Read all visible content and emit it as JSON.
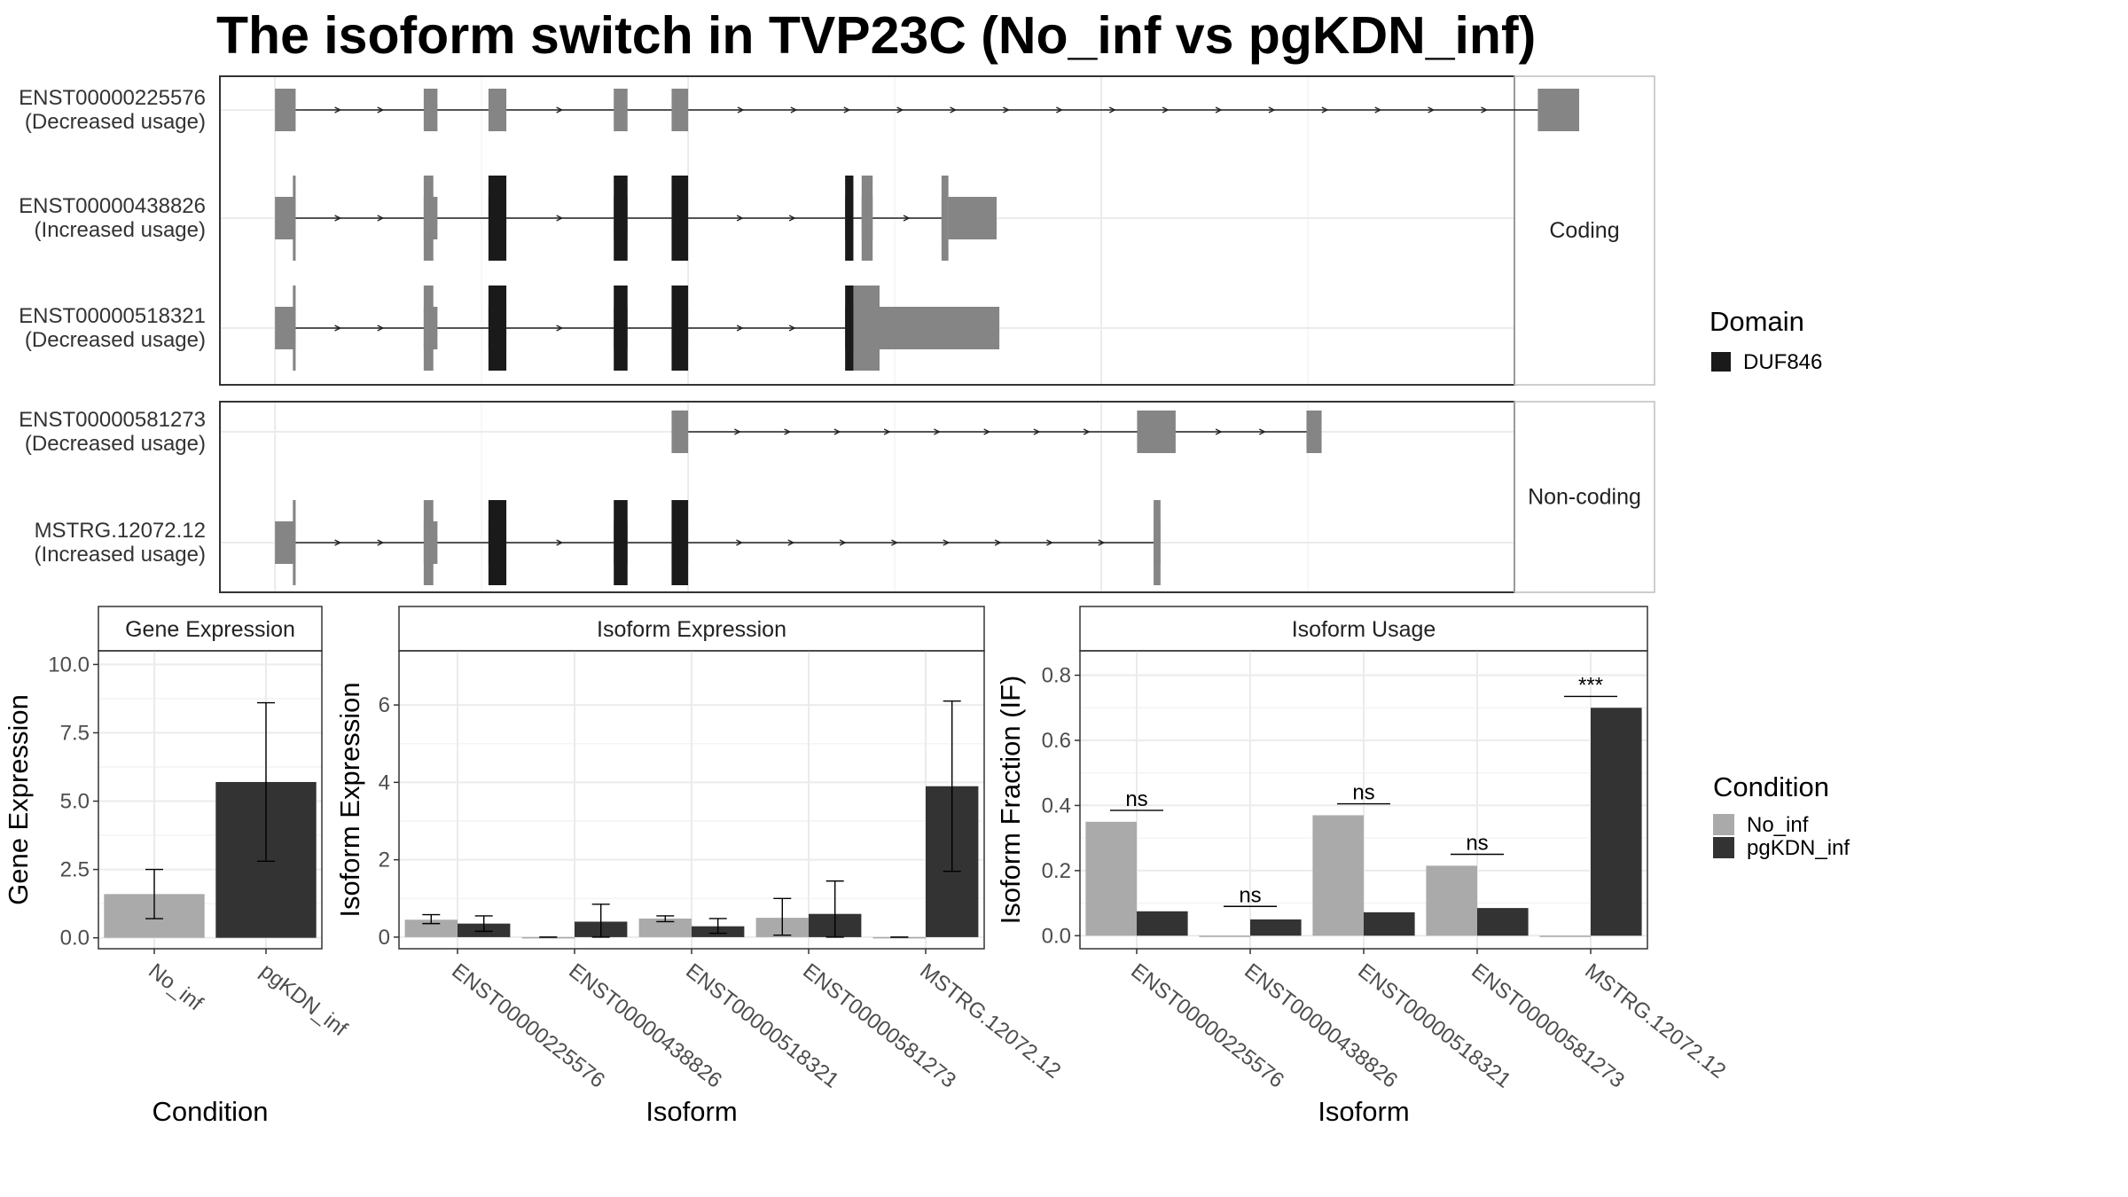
{
  "title": "The isoform switch in TVP23C (No_inf vs pgKDN_inf)",
  "colors": {
    "utr": "#858585",
    "domain": "#1a1a1a",
    "no_inf": "#aaaaaa",
    "pgkdn_inf": "#333333",
    "grid": "#ebebeb"
  },
  "structure": {
    "facets": [
      {
        "label": "Coding",
        "isoforms": [
          {
            "id": "ENST00000225576",
            "usage": "(Decreased usage)",
            "exons": [
              [
                0.0,
                1.5
              ],
              [
                10.8,
                11.8
              ],
              [
                15.5,
                16.8
              ],
              [
                24.6,
                25.6
              ],
              [
                28.8,
                30.0
              ],
              [
                91.7,
                94.7
              ]
            ],
            "domain_exons": [],
            "cds": []
          },
          {
            "id": "ENST00000438826",
            "usage": "(Increased usage)",
            "exons": [
              [
                0.0,
                1.5
              ],
              [
                10.8,
                11.8
              ],
              [
                15.5,
                16.8
              ],
              [
                24.6,
                25.6
              ],
              [
                28.8,
                30.0
              ],
              [
                41.4,
                42.0
              ],
              [
                42.6,
                43.4
              ],
              [
                48.4,
                48.9
              ],
              [
                48.9,
                52.4
              ]
            ],
            "domain_exons": [
              [
                15.5,
                16.8
              ],
              [
                24.6,
                25.6
              ],
              [
                28.8,
                30.0
              ],
              [
                41.4,
                42.0
              ]
            ],
            "cds": [
              [
                1.3,
                1.5
              ],
              [
                10.8,
                11.5
              ],
              [
                42.6,
                43.4
              ],
              [
                48.4,
                48.9
              ]
            ]
          },
          {
            "id": "ENST00000518321",
            "usage": "(Decreased usage)",
            "exons": [
              [
                0.0,
                1.5
              ],
              [
                10.8,
                11.8
              ],
              [
                15.5,
                16.8
              ],
              [
                24.6,
                25.6
              ],
              [
                28.8,
                30.0
              ],
              [
                41.4,
                42.0
              ],
              [
                42.6,
                52.6
              ]
            ],
            "domain_exons": [
              [
                15.5,
                16.8
              ],
              [
                24.6,
                25.6
              ],
              [
                28.8,
                30.0
              ],
              [
                41.4,
                42.0
              ]
            ],
            "cds": [
              [
                1.3,
                1.5
              ],
              [
                10.8,
                11.5
              ],
              [
                42.0,
                43.9
              ]
            ]
          }
        ]
      },
      {
        "label": "Non-coding",
        "isoforms": [
          {
            "id": "ENST00000581273",
            "usage": "(Decreased usage)",
            "exons": [
              [
                28.8,
                30.0
              ],
              [
                62.6,
                65.4
              ],
              [
                74.9,
                76.0
              ]
            ],
            "domain_exons": [],
            "cds": []
          },
          {
            "id": "MSTRG.12072.12",
            "usage": "(Increased usage)",
            "exons": [
              [
                0.0,
                1.5
              ],
              [
                10.8,
                11.8
              ],
              [
                15.5,
                16.8
              ],
              [
                24.6,
                25.6
              ],
              [
                28.8,
                30.0
              ],
              [
                63.8,
                64.3
              ]
            ],
            "domain_exons": [
              [
                15.5,
                16.8
              ],
              [
                24.6,
                25.6
              ],
              [
                28.8,
                30.0
              ]
            ],
            "cds": [
              [
                1.3,
                1.5
              ],
              [
                10.8,
                11.5
              ],
              [
                63.8,
                64.3
              ]
            ]
          }
        ]
      }
    ],
    "x_range": [
      -4,
      90
    ]
  },
  "legend_domain": {
    "title": "Domain",
    "items": [
      "DUF846"
    ]
  },
  "legend_condition": {
    "title": "Condition",
    "items": [
      "No_inf",
      "pgKDN_inf"
    ]
  },
  "chart_data": [
    {
      "type": "bar",
      "title": "Gene Expression",
      "xlabel": "Condition",
      "ylabel": "Gene Expression",
      "categories": [
        "No_inf",
        "pgKDN_inf"
      ],
      "values": [
        1.6,
        5.7
      ],
      "error_low": [
        0.7,
        2.8
      ],
      "error_high": [
        2.5,
        8.6
      ],
      "ylim": [
        -0.4,
        10.5
      ],
      "yticks": [
        "0.0",
        "2.5",
        "5.0",
        "7.5",
        "10.0"
      ],
      "grid": true
    },
    {
      "type": "bar",
      "title": "Isoform Expression",
      "xlabel": "Isoform",
      "ylabel": "Isoform Expression",
      "categories": [
        "ENST00000225576",
        "ENST00000438826",
        "ENST00000518321",
        "ENST00000581273",
        "MSTRG.12072.12"
      ],
      "series": [
        {
          "name": "No_inf",
          "values": [
            0.45,
            0.0,
            0.48,
            0.5,
            0.0
          ],
          "error_low": [
            0.35,
            0.0,
            0.4,
            0.05,
            0.0
          ],
          "error_high": [
            0.58,
            0.0,
            0.55,
            1.0,
            0.0
          ]
        },
        {
          "name": "pgKDN_inf",
          "values": [
            0.35,
            0.4,
            0.28,
            0.6,
            3.9
          ],
          "error_low": [
            0.15,
            0.0,
            0.1,
            0.0,
            1.7
          ],
          "error_high": [
            0.55,
            0.85,
            0.48,
            1.45,
            6.1
          ]
        }
      ],
      "ylim": [
        -0.3,
        7.4
      ],
      "yticks": [
        "0",
        "2",
        "4",
        "6"
      ],
      "grid": true
    },
    {
      "type": "bar",
      "title": "Isoform Usage",
      "xlabel": "Isoform",
      "ylabel": "Isoform Fraction (IF)",
      "categories": [
        "ENST00000225576",
        "ENST00000438826",
        "ENST00000518321",
        "ENST00000581273",
        "MSTRG.12072.12"
      ],
      "series": [
        {
          "name": "No_inf",
          "values": [
            0.35,
            0.0,
            0.37,
            0.215,
            0.0
          ]
        },
        {
          "name": "pgKDN_inf",
          "values": [
            0.075,
            0.05,
            0.072,
            0.085,
            0.7
          ]
        }
      ],
      "significance": [
        "ns",
        "ns",
        "ns",
        "ns",
        "***"
      ],
      "significance_y": [
        0.385,
        0.09,
        0.405,
        0.25,
        0.735
      ],
      "ylim": [
        -0.04,
        0.875
      ],
      "yticks": [
        "0.0",
        "0.2",
        "0.4",
        "0.6",
        "0.8"
      ],
      "grid": true
    }
  ]
}
